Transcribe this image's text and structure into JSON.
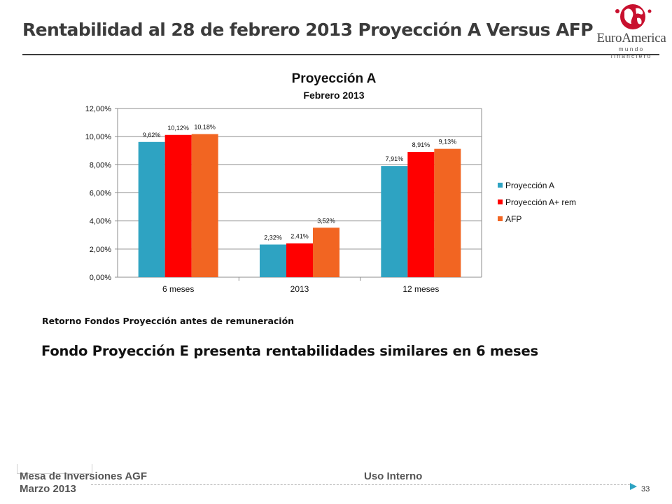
{
  "slide": {
    "title": "Rentabilidad al 28 de febrero 2013 Proyección A Versus AFP",
    "caption_small": "Retorno Fondos Proyección antes de remuneración",
    "caption_large": "Fondo Proyección E presenta rentabilidades similares en 6 meses"
  },
  "logo": {
    "name": "EuroAmerica",
    "tagline": "mundo financiero",
    "icon": "globe-logo-icon",
    "color": "#c8102e"
  },
  "footer": {
    "left_line1": "Mesa de Inversiones AGF",
    "left_line2": "Marzo 2013",
    "center": "Uso Interno",
    "page_number": "33",
    "icon": "play-arrow-icon"
  },
  "chart_data": {
    "type": "bar",
    "title": "Proyección A",
    "subtitle": "Febrero 2013",
    "categories": [
      "6 meses",
      "2013",
      "12 meses"
    ],
    "series": [
      {
        "name": "Proyección A",
        "color": "#2ea3c2",
        "values": [
          9.62,
          2.32,
          7.91
        ],
        "labels": [
          "9,62%",
          "2,32%",
          "7,91%"
        ]
      },
      {
        "name": "Proyección A+ rem",
        "color": "#ff0000",
        "values": [
          10.12,
          2.41,
          8.91
        ],
        "labels": [
          "10,12%",
          "2,41%",
          "8,91%"
        ]
      },
      {
        "name": "AFP",
        "color": "#f26522",
        "values": [
          10.18,
          3.52,
          9.13
        ],
        "labels": [
          "10,18%",
          "3,52%",
          "9,13%"
        ]
      }
    ],
    "ylim": [
      0,
      12
    ],
    "yticks": [
      0,
      2,
      4,
      6,
      8,
      10,
      12
    ],
    "ytick_labels": [
      "0,00%",
      "2,00%",
      "4,00%",
      "6,00%",
      "8,00%",
      "10,00%",
      "12,00%"
    ],
    "grid": true,
    "legend": "right"
  }
}
